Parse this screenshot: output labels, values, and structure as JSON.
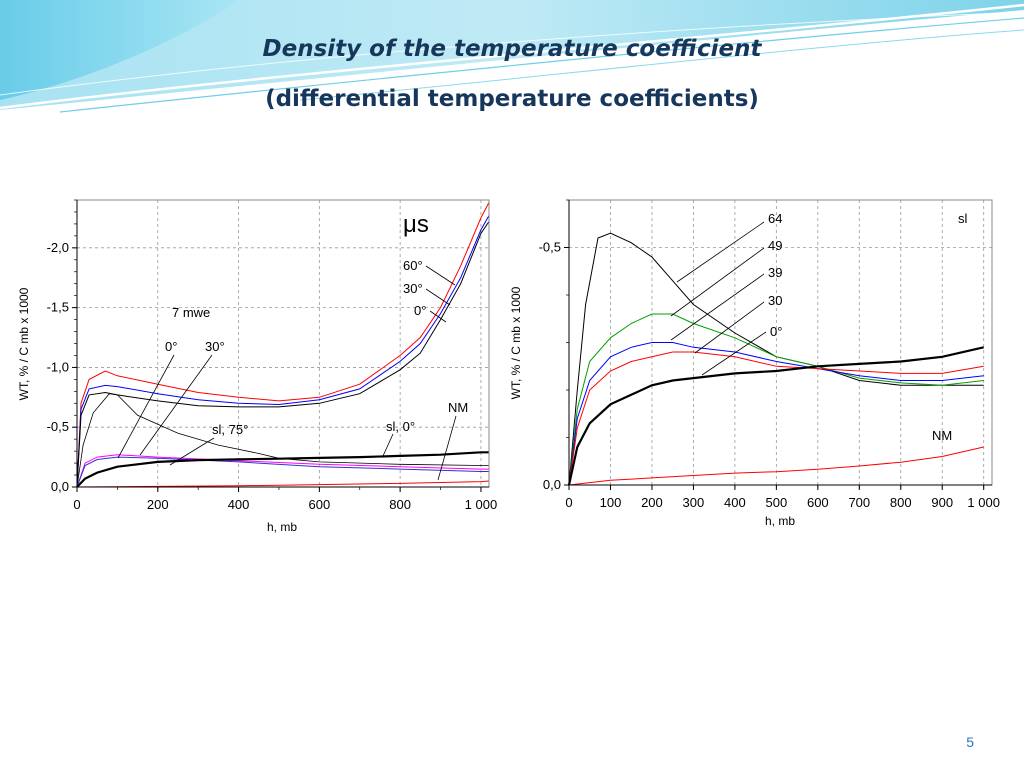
{
  "slide": {
    "title_line1": "Density of the temperature coefficient",
    "title_line2": "(differential temperature coefficients)",
    "page_number": "5"
  },
  "chart_data": [
    {
      "type": "line",
      "ylabel": "WT, % / C mb x 1000",
      "xlabel": "h, mb",
      "xlim": [
        0,
        1020
      ],
      "ylim": [
        0,
        -2.4
      ],
      "x_ticks": [
        0,
        200,
        400,
        600,
        800,
        1000
      ],
      "x_tick_labels": [
        "0",
        "200",
        "400",
        "600",
        "800",
        "1 000"
      ],
      "y_ticks": [
        0,
        -0.5,
        -1.0,
        -1.5,
        -2.0
      ],
      "y_tick_labels": [
        "0,0",
        "-0,5",
        "-1,0",
        "-1,5",
        "-2,0"
      ],
      "grid": true,
      "legend_title": "μs",
      "annotations": [
        {
          "text": "60°",
          "series": "60°"
        },
        {
          "text": "30°",
          "series": "30°"
        },
        {
          "text": "0°",
          "series": "0°"
        },
        {
          "text": "7 mwe"
        },
        {
          "text": "0°"
        },
        {
          "text": "30°"
        },
        {
          "text": "sl, 75°"
        },
        {
          "text": "sl, 0°"
        },
        {
          "text": "NM"
        }
      ],
      "series": [
        {
          "color": "#ff0000",
          "width": 1,
          "x": [
            0,
            10,
            30,
            70,
            100,
            200,
            300,
            400,
            500,
            600,
            700,
            800,
            850,
            900,
            950,
            1000,
            1020
          ],
          "y": [
            0,
            -0.7,
            -0.9,
            -0.97,
            -0.93,
            -0.86,
            -0.79,
            -0.75,
            -0.72,
            -0.75,
            -0.86,
            -1.1,
            -1.25,
            -1.5,
            -1.85,
            -2.25,
            -2.38
          ]
        },
        {
          "color": "#0000ff",
          "width": 1,
          "x": [
            0,
            10,
            30,
            70,
            100,
            200,
            300,
            400,
            500,
            600,
            700,
            800,
            850,
            900,
            950,
            1000,
            1020
          ],
          "y": [
            0,
            -0.65,
            -0.82,
            -0.85,
            -0.84,
            -0.78,
            -0.73,
            -0.7,
            -0.69,
            -0.73,
            -0.82,
            -1.05,
            -1.2,
            -1.45,
            -1.75,
            -2.15,
            -2.27
          ]
        },
        {
          "color": "#000000",
          "width": 1,
          "x": [
            0,
            10,
            30,
            70,
            100,
            200,
            300,
            400,
            500,
            600,
            700,
            800,
            850,
            900,
            950,
            1000,
            1020
          ],
          "y": [
            0,
            -0.6,
            -0.77,
            -0.79,
            -0.77,
            -0.72,
            -0.68,
            -0.67,
            -0.67,
            -0.7,
            -0.78,
            -0.98,
            -1.12,
            -1.4,
            -1.7,
            -2.12,
            -2.22
          ]
        },
        {
          "color": "#000000",
          "width": 0.8,
          "x": [
            0,
            15,
            40,
            80,
            100,
            150,
            250,
            350,
            450,
            500,
            600,
            800,
            1000,
            1020
          ],
          "y": [
            0,
            -0.35,
            -0.62,
            -0.78,
            -0.77,
            -0.6,
            -0.45,
            -0.35,
            -0.28,
            -0.24,
            -0.21,
            -0.19,
            -0.18,
            -0.18
          ]
        },
        {
          "color": "#ff00ff",
          "width": 1,
          "x": [
            0,
            20,
            50,
            100,
            200,
            400,
            600,
            800,
            1000,
            1020
          ],
          "y": [
            0,
            -0.2,
            -0.25,
            -0.27,
            -0.25,
            -0.22,
            -0.19,
            -0.17,
            -0.15,
            -0.15
          ]
        },
        {
          "color": "#3333cc",
          "width": 1,
          "x": [
            0,
            20,
            50,
            100,
            200,
            400,
            600,
            800,
            1000,
            1020
          ],
          "y": [
            0,
            -0.18,
            -0.23,
            -0.25,
            -0.24,
            -0.21,
            -0.17,
            -0.15,
            -0.13,
            -0.13
          ]
        },
        {
          "color": "#000000",
          "width": 2.2,
          "x": [
            0,
            20,
            50,
            100,
            200,
            300,
            400,
            500,
            600,
            700,
            800,
            900,
            1000,
            1020
          ],
          "y": [
            0,
            -0.07,
            -0.12,
            -0.17,
            -0.21,
            -0.225,
            -0.232,
            -0.237,
            -0.243,
            -0.25,
            -0.26,
            -0.27,
            -0.29,
            -0.29
          ]
        },
        {
          "color": "#ff0000",
          "width": 1,
          "x": [
            0,
            200,
            400,
            600,
            800,
            1000,
            1020
          ],
          "y": [
            0,
            -0.005,
            -0.01,
            -0.02,
            -0.03,
            -0.045,
            -0.05
          ]
        }
      ]
    },
    {
      "type": "line",
      "ylabel": "WT, % / C mb x 1000",
      "xlabel": "h, mb",
      "xlim": [
        0,
        1020
      ],
      "ylim": [
        0,
        -0.6
      ],
      "x_ticks": [
        0,
        100,
        200,
        300,
        400,
        500,
        600,
        700,
        800,
        900,
        1000
      ],
      "x_tick_labels": [
        "0",
        "100",
        "200",
        "300",
        "400",
        "500",
        "600",
        "700",
        "800",
        "900",
        "1 000"
      ],
      "y_ticks": [
        0,
        -0.5
      ],
      "y_tick_labels": [
        "0,0",
        "-0,5"
      ],
      "grid": true,
      "legend_title": "sl",
      "annotations": [
        {
          "text": "64",
          "series": "64"
        },
        {
          "text": "49",
          "series": "49"
        },
        {
          "text": "39",
          "series": "39"
        },
        {
          "text": "30",
          "series": "30"
        },
        {
          "text": "0°",
          "series": "0°"
        },
        {
          "text": "NM"
        }
      ],
      "series": [
        {
          "color": "#000000",
          "width": 1,
          "x": [
            0,
            20,
            40,
            70,
            100,
            150,
            200,
            250,
            300,
            400,
            500,
            600,
            700,
            800,
            900,
            1000
          ],
          "y": [
            0,
            -0.2,
            -0.38,
            -0.52,
            -0.53,
            -0.51,
            -0.48,
            -0.43,
            -0.38,
            -0.32,
            -0.27,
            -0.25,
            -0.22,
            -0.21,
            -0.21,
            -0.21
          ]
        },
        {
          "color": "#00a000",
          "width": 1,
          "x": [
            0,
            20,
            50,
            100,
            150,
            200,
            250,
            300,
            400,
            500,
            600,
            700,
            800,
            900,
            1000
          ],
          "y": [
            0,
            -0.16,
            -0.26,
            -0.31,
            -0.34,
            -0.36,
            -0.36,
            -0.34,
            -0.31,
            -0.27,
            -0.25,
            -0.225,
            -0.215,
            -0.21,
            -0.22
          ]
        },
        {
          "color": "#0000ff",
          "width": 1,
          "x": [
            0,
            20,
            50,
            100,
            150,
            200,
            250,
            300,
            400,
            500,
            600,
            700,
            800,
            900,
            1000
          ],
          "y": [
            0,
            -0.14,
            -0.22,
            -0.27,
            -0.29,
            -0.3,
            -0.3,
            -0.29,
            -0.28,
            -0.26,
            -0.245,
            -0.23,
            -0.22,
            -0.22,
            -0.23
          ]
        },
        {
          "color": "#ff0000",
          "width": 1,
          "x": [
            0,
            20,
            50,
            100,
            150,
            200,
            250,
            300,
            400,
            500,
            600,
            700,
            800,
            900,
            1000
          ],
          "y": [
            0,
            -0.12,
            -0.2,
            -0.24,
            -0.26,
            -0.27,
            -0.28,
            -0.28,
            -0.27,
            -0.25,
            -0.245,
            -0.24,
            -0.235,
            -0.235,
            -0.25
          ]
        },
        {
          "color": "#000000",
          "width": 2.2,
          "x": [
            0,
            20,
            50,
            100,
            150,
            200,
            250,
            300,
            400,
            500,
            600,
            700,
            800,
            900,
            1000
          ],
          "y": [
            0,
            -0.08,
            -0.13,
            -0.17,
            -0.19,
            -0.21,
            -0.22,
            -0.225,
            -0.235,
            -0.24,
            -0.25,
            -0.255,
            -0.26,
            -0.27,
            -0.29
          ]
        },
        {
          "color": "#ff0000",
          "width": 1,
          "x": [
            0,
            50,
            100,
            200,
            300,
            400,
            500,
            600,
            700,
            800,
            900,
            1000
          ],
          "y": [
            0,
            -0.005,
            -0.01,
            -0.015,
            -0.02,
            -0.025,
            -0.028,
            -0.033,
            -0.04,
            -0.048,
            -0.06,
            -0.08
          ]
        }
      ]
    }
  ]
}
